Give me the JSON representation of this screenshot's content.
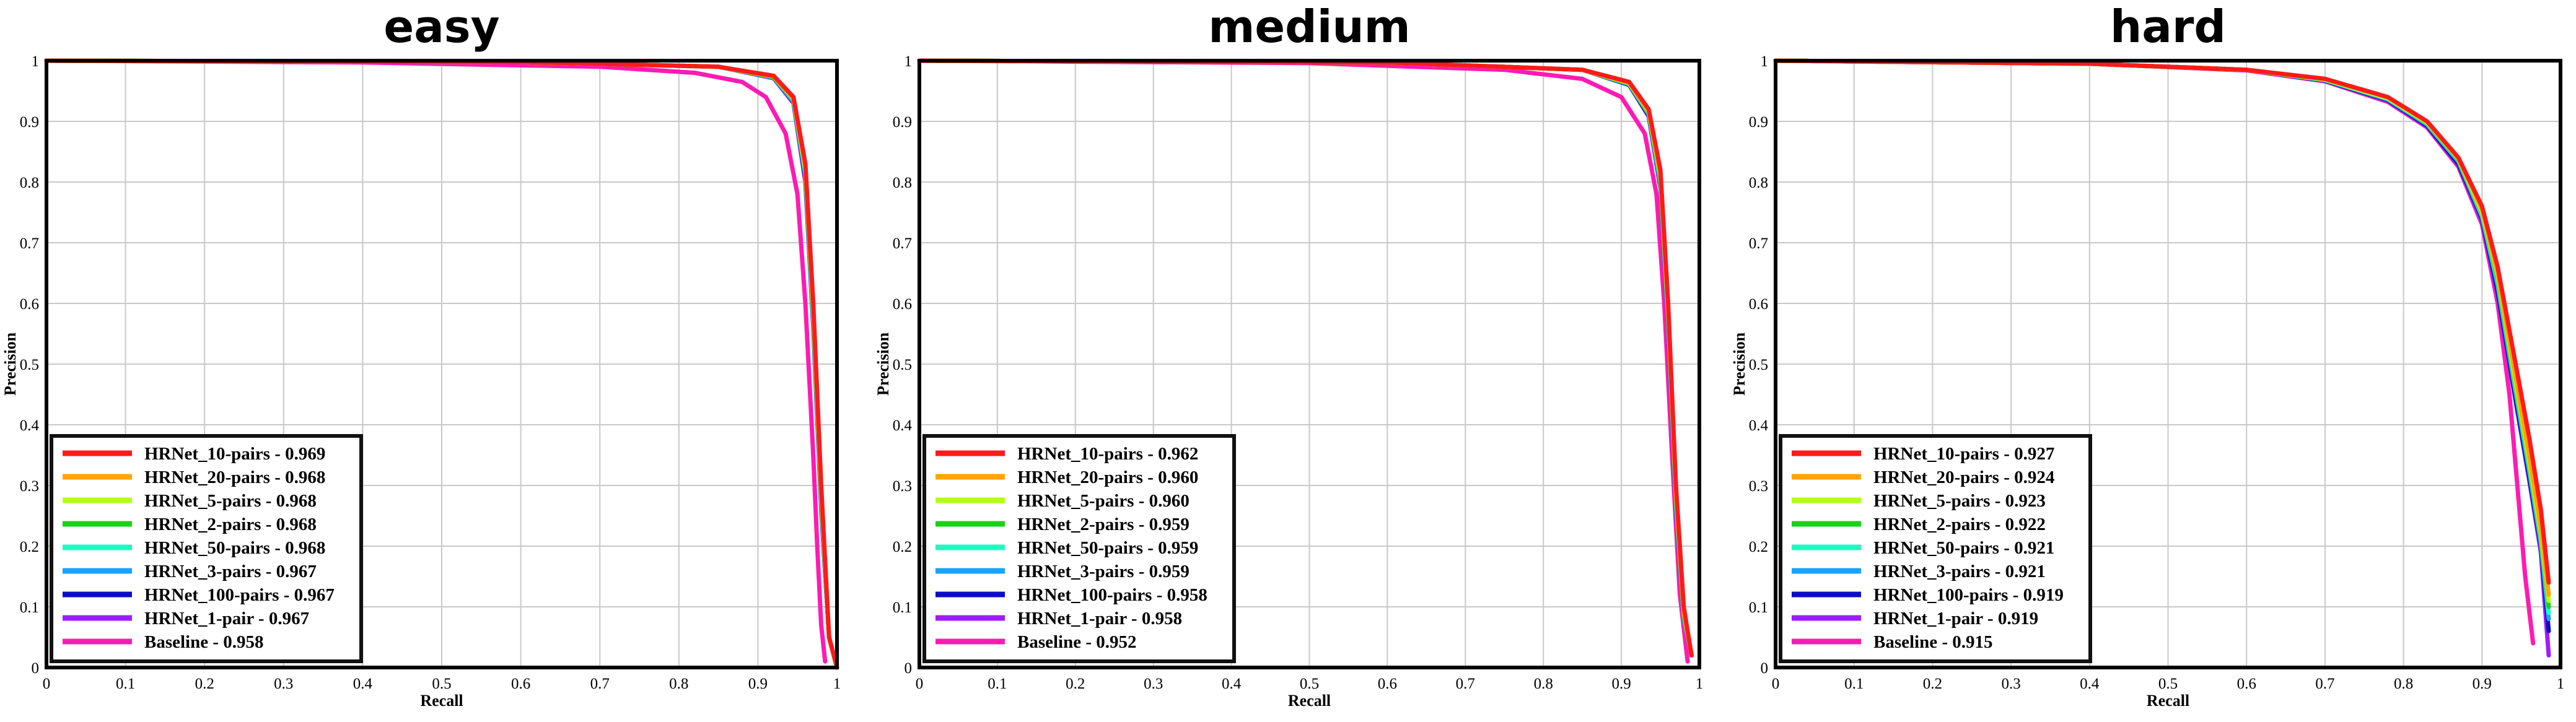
{
  "chart_data": [
    {
      "type": "line",
      "title": "easy",
      "xlabel": "Recall",
      "ylabel": "Precision",
      "xlim": [
        0,
        1
      ],
      "ylim": [
        0,
        1
      ],
      "xticks": [
        "0",
        "0.1",
        "0.2",
        "0.3",
        "0.4",
        "0.5",
        "0.6",
        "0.7",
        "0.8",
        "0.9",
        "1"
      ],
      "yticks": [
        "0",
        "0.1",
        "0.2",
        "0.3",
        "0.4",
        "0.5",
        "0.6",
        "0.7",
        "0.8",
        "0.9",
        "1"
      ],
      "grid": true,
      "legend_position": "bottom-left",
      "series": [
        {
          "name": "HRNet_10-pairs - 0.969",
          "color": "#ff1a1a",
          "x": [
            0,
            0.6,
            0.85,
            0.92,
            0.945,
            0.96,
            0.97,
            0.98,
            0.99,
            1.0
          ],
          "y": [
            1.0,
            0.998,
            0.99,
            0.975,
            0.94,
            0.83,
            0.6,
            0.3,
            0.05,
            0.0
          ]
        },
        {
          "name": "HRNet_20-pairs - 0.968",
          "color": "#ffa500",
          "x": [
            0,
            0.6,
            0.85,
            0.92,
            0.945,
            0.96,
            0.97,
            0.98,
            0.99,
            1.0
          ],
          "y": [
            1.0,
            0.998,
            0.99,
            0.974,
            0.938,
            0.825,
            0.59,
            0.29,
            0.05,
            0.0
          ]
        },
        {
          "name": "HRNet_5-pairs - 0.968",
          "color": "#b3ff1a",
          "x": [
            0,
            0.6,
            0.85,
            0.92,
            0.945,
            0.96,
            0.97,
            0.98,
            0.99,
            1.0
          ],
          "y": [
            1.0,
            0.998,
            0.99,
            0.974,
            0.937,
            0.82,
            0.585,
            0.285,
            0.05,
            0.0
          ]
        },
        {
          "name": "HRNet_2-pairs - 0.968",
          "color": "#1ad11a",
          "x": [
            0,
            0.6,
            0.85,
            0.92,
            0.945,
            0.96,
            0.97,
            0.98,
            0.99,
            1.0
          ],
          "y": [
            1.0,
            0.998,
            0.99,
            0.973,
            0.936,
            0.818,
            0.58,
            0.28,
            0.05,
            0.0
          ]
        },
        {
          "name": "HRNet_50-pairs - 0.968",
          "color": "#1affc0",
          "x": [
            0,
            0.6,
            0.85,
            0.92,
            0.945,
            0.96,
            0.97,
            0.98,
            0.99,
            1.0
          ],
          "y": [
            1.0,
            0.998,
            0.99,
            0.973,
            0.935,
            0.815,
            0.575,
            0.275,
            0.05,
            0.0
          ]
        },
        {
          "name": "HRNet_3-pairs - 0.967",
          "color": "#1aa3ff",
          "x": [
            0,
            0.6,
            0.85,
            0.92,
            0.945,
            0.96,
            0.97,
            0.98,
            0.99,
            1.0
          ],
          "y": [
            1.0,
            0.998,
            0.99,
            0.972,
            0.933,
            0.81,
            0.57,
            0.27,
            0.05,
            0.0
          ]
        },
        {
          "name": "HRNet_100-pairs - 0.967",
          "color": "#0d0dc4",
          "x": [
            0,
            0.6,
            0.85,
            0.92,
            0.945,
            0.96,
            0.97,
            0.98,
            0.99,
            1.0
          ],
          "y": [
            1.0,
            0.998,
            0.99,
            0.972,
            0.932,
            0.805,
            0.565,
            0.265,
            0.05,
            0.0
          ]
        },
        {
          "name": "HRNet_1-pair - 0.967",
          "color": "#a21aff",
          "x": [
            0,
            0.6,
            0.85,
            0.92,
            0.945,
            0.96,
            0.97,
            0.98,
            0.99,
            1.0
          ],
          "y": [
            1.0,
            0.998,
            0.99,
            0.971,
            0.93,
            0.8,
            0.56,
            0.26,
            0.05,
            0.0
          ]
        },
        {
          "name": "Baseline - 0.958",
          "color": "#ff1ab3",
          "x": [
            0,
            0.4,
            0.7,
            0.82,
            0.88,
            0.91,
            0.935,
            0.95,
            0.96,
            0.97,
            0.975,
            0.98,
            0.985
          ],
          "y": [
            1.0,
            0.997,
            0.99,
            0.98,
            0.965,
            0.94,
            0.88,
            0.78,
            0.6,
            0.35,
            0.2,
            0.07,
            0.01
          ]
        }
      ],
      "legend": {
        "items": [
          {
            "label": "HRNet_10-pairs - 0.969",
            "color": "#ff1a1a"
          },
          {
            "label": "HRNet_20-pairs - 0.968",
            "color": "#ffa500"
          },
          {
            "label": "HRNet_5-pairs - 0.968",
            "color": "#b3ff1a"
          },
          {
            "label": "HRNet_2-pairs - 0.968",
            "color": "#1ad11a"
          },
          {
            "label": "HRNet_50-pairs - 0.968",
            "color": "#1affc0"
          },
          {
            "label": "HRNet_3-pairs - 0.967",
            "color": "#1aa3ff"
          },
          {
            "label": "HRNet_100-pairs - 0.967",
            "color": "#0d0dc4"
          },
          {
            "label": "HRNet_1-pair - 0.967",
            "color": "#a21aff"
          },
          {
            "label": "Baseline - 0.958",
            "color": "#ff1ab3"
          }
        ]
      }
    },
    {
      "type": "line",
      "title": "medium",
      "xlabel": "Recall",
      "ylabel": "Precision",
      "xlim": [
        0,
        1
      ],
      "ylim": [
        0,
        1
      ],
      "xticks": [
        "0",
        "0.1",
        "0.2",
        "0.3",
        "0.4",
        "0.5",
        "0.6",
        "0.7",
        "0.8",
        "0.9",
        "1"
      ],
      "yticks": [
        "0",
        "0.1",
        "0.2",
        "0.3",
        "0.4",
        "0.5",
        "0.6",
        "0.7",
        "0.8",
        "0.9",
        "1"
      ],
      "grid": true,
      "legend_position": "bottom-left",
      "series": [
        {
          "name": "HRNet_10-pairs - 0.962",
          "color": "#ff1a1a",
          "x": [
            0,
            0.6,
            0.85,
            0.91,
            0.935,
            0.95,
            0.96,
            0.97,
            0.98,
            0.99
          ],
          "y": [
            1.0,
            0.997,
            0.985,
            0.965,
            0.92,
            0.82,
            0.6,
            0.3,
            0.1,
            0.02
          ]
        },
        {
          "name": "HRNet_20-pairs - 0.960",
          "color": "#ffa500",
          "x": [
            0,
            0.6,
            0.85,
            0.91,
            0.935,
            0.95,
            0.96,
            0.97,
            0.98,
            0.99
          ],
          "y": [
            1.0,
            0.997,
            0.985,
            0.964,
            0.918,
            0.815,
            0.59,
            0.29,
            0.09,
            0.02
          ]
        },
        {
          "name": "HRNet_5-pairs - 0.960",
          "color": "#b3ff1a",
          "x": [
            0,
            0.6,
            0.85,
            0.91,
            0.935,
            0.95,
            0.96,
            0.97,
            0.98,
            0.99
          ],
          "y": [
            1.0,
            0.997,
            0.985,
            0.963,
            0.916,
            0.81,
            0.585,
            0.285,
            0.09,
            0.02
          ]
        },
        {
          "name": "HRNet_2-pairs - 0.959",
          "color": "#1ad11a",
          "x": [
            0,
            0.6,
            0.85,
            0.91,
            0.935,
            0.95,
            0.96,
            0.97,
            0.98,
            0.99
          ],
          "y": [
            1.0,
            0.997,
            0.985,
            0.962,
            0.914,
            0.805,
            0.58,
            0.28,
            0.085,
            0.02
          ]
        },
        {
          "name": "HRNet_50-pairs - 0.959",
          "color": "#1affc0",
          "x": [
            0,
            0.6,
            0.85,
            0.91,
            0.935,
            0.95,
            0.96,
            0.97,
            0.98,
            0.99
          ],
          "y": [
            1.0,
            0.997,
            0.985,
            0.962,
            0.913,
            0.8,
            0.575,
            0.275,
            0.085,
            0.02
          ]
        },
        {
          "name": "HRNet_3-pairs - 0.959",
          "color": "#1aa3ff",
          "x": [
            0,
            0.6,
            0.85,
            0.91,
            0.935,
            0.95,
            0.96,
            0.97,
            0.98,
            0.99
          ],
          "y": [
            1.0,
            0.997,
            0.985,
            0.961,
            0.912,
            0.798,
            0.57,
            0.27,
            0.08,
            0.02
          ]
        },
        {
          "name": "HRNet_100-pairs - 0.958",
          "color": "#0d0dc4",
          "x": [
            0,
            0.6,
            0.85,
            0.91,
            0.935,
            0.95,
            0.96,
            0.97,
            0.98,
            0.99
          ],
          "y": [
            1.0,
            0.997,
            0.985,
            0.96,
            0.91,
            0.795,
            0.565,
            0.265,
            0.08,
            0.02
          ]
        },
        {
          "name": "HRNet_1-pair - 0.958",
          "color": "#a21aff",
          "x": [
            0,
            0.6,
            0.85,
            0.91,
            0.935,
            0.95,
            0.96,
            0.97,
            0.98,
            0.99
          ],
          "y": [
            1.0,
            0.997,
            0.985,
            0.96,
            0.908,
            0.79,
            0.56,
            0.26,
            0.08,
            0.02
          ]
        },
        {
          "name": "Baseline - 0.952",
          "color": "#ff1ab3",
          "x": [
            0,
            0.5,
            0.75,
            0.85,
            0.9,
            0.93,
            0.945,
            0.955,
            0.965,
            0.975,
            0.985
          ],
          "y": [
            1.0,
            0.996,
            0.985,
            0.97,
            0.94,
            0.88,
            0.78,
            0.6,
            0.35,
            0.12,
            0.01
          ]
        }
      ],
      "legend": {
        "items": [
          {
            "label": "HRNet_10-pairs - 0.962",
            "color": "#ff1a1a"
          },
          {
            "label": "HRNet_20-pairs - 0.960",
            "color": "#ffa500"
          },
          {
            "label": "HRNet_5-pairs - 0.960",
            "color": "#b3ff1a"
          },
          {
            "label": "HRNet_2-pairs - 0.959",
            "color": "#1ad11a"
          },
          {
            "label": "HRNet_50-pairs - 0.959",
            "color": "#1affc0"
          },
          {
            "label": "HRNet_3-pairs - 0.959",
            "color": "#1aa3ff"
          },
          {
            "label": "HRNet_100-pairs - 0.958",
            "color": "#0d0dc4"
          },
          {
            "label": "HRNet_1-pair - 0.958",
            "color": "#a21aff"
          },
          {
            "label": "Baseline - 0.952",
            "color": "#ff1ab3"
          }
        ]
      }
    },
    {
      "type": "line",
      "title": "hard",
      "xlabel": "Recall",
      "ylabel": "Precision",
      "xlim": [
        0,
        1
      ],
      "ylim": [
        0,
        1
      ],
      "xticks": [
        "0",
        "0.1",
        "0.2",
        "0.3",
        "0.4",
        "0.5",
        "0.6",
        "0.7",
        "0.8",
        "0.9",
        "1"
      ],
      "yticks": [
        "0",
        "0.1",
        "0.2",
        "0.3",
        "0.4",
        "0.5",
        "0.6",
        "0.7",
        "0.8",
        "0.9",
        "1"
      ],
      "grid": true,
      "legend_position": "bottom-left",
      "series": [
        {
          "name": "HRNet_10-pairs - 0.927",
          "color": "#ff1a1a",
          "x": [
            0,
            0.4,
            0.6,
            0.7,
            0.78,
            0.83,
            0.87,
            0.9,
            0.92,
            0.94,
            0.96,
            0.975,
            0.985
          ],
          "y": [
            1.0,
            0.995,
            0.985,
            0.97,
            0.94,
            0.9,
            0.84,
            0.76,
            0.66,
            0.52,
            0.38,
            0.26,
            0.14
          ]
        },
        {
          "name": "HRNet_20-pairs - 0.924",
          "color": "#ffa500",
          "x": [
            0,
            0.4,
            0.6,
            0.7,
            0.78,
            0.83,
            0.87,
            0.9,
            0.92,
            0.94,
            0.96,
            0.975,
            0.985
          ],
          "y": [
            1.0,
            0.995,
            0.985,
            0.97,
            0.94,
            0.9,
            0.84,
            0.755,
            0.65,
            0.5,
            0.35,
            0.23,
            0.12
          ]
        },
        {
          "name": "HRNet_5-pairs - 0.923",
          "color": "#b3ff1a",
          "x": [
            0,
            0.4,
            0.6,
            0.7,
            0.78,
            0.83,
            0.87,
            0.9,
            0.92,
            0.94,
            0.96,
            0.975,
            0.985
          ],
          "y": [
            1.0,
            0.995,
            0.985,
            0.969,
            0.938,
            0.898,
            0.838,
            0.75,
            0.645,
            0.49,
            0.34,
            0.22,
            0.11
          ]
        },
        {
          "name": "HRNet_2-pairs - 0.922",
          "color": "#1ad11a",
          "x": [
            0,
            0.4,
            0.6,
            0.7,
            0.78,
            0.83,
            0.87,
            0.9,
            0.92,
            0.94,
            0.96,
            0.975,
            0.985
          ],
          "y": [
            1.0,
            0.995,
            0.985,
            0.969,
            0.938,
            0.897,
            0.836,
            0.748,
            0.64,
            0.485,
            0.335,
            0.215,
            0.1
          ]
        },
        {
          "name": "HRNet_50-pairs - 0.921",
          "color": "#1affc0",
          "x": [
            0,
            0.4,
            0.6,
            0.7,
            0.78,
            0.83,
            0.87,
            0.9,
            0.92,
            0.94,
            0.96,
            0.975,
            0.985
          ],
          "y": [
            1.0,
            0.995,
            0.985,
            0.968,
            0.937,
            0.896,
            0.835,
            0.745,
            0.635,
            0.48,
            0.33,
            0.21,
            0.09
          ]
        },
        {
          "name": "HRNet_3-pairs - 0.921",
          "color": "#1aa3ff",
          "x": [
            0,
            0.4,
            0.6,
            0.7,
            0.78,
            0.83,
            0.87,
            0.9,
            0.92,
            0.94,
            0.96,
            0.975,
            0.985
          ],
          "y": [
            1.0,
            0.995,
            0.985,
            0.968,
            0.936,
            0.895,
            0.834,
            0.743,
            0.63,
            0.475,
            0.325,
            0.205,
            0.08
          ]
        },
        {
          "name": "HRNet_100-pairs - 0.919",
          "color": "#0d0dc4",
          "x": [
            0,
            0.4,
            0.6,
            0.7,
            0.78,
            0.83,
            0.87,
            0.9,
            0.92,
            0.94,
            0.96,
            0.975,
            0.985
          ],
          "y": [
            1.0,
            0.995,
            0.985,
            0.967,
            0.935,
            0.893,
            0.83,
            0.74,
            0.62,
            0.465,
            0.315,
            0.2,
            0.06
          ]
        },
        {
          "name": "HRNet_1-pair - 0.919",
          "color": "#a21aff",
          "x": [
            0,
            0.4,
            0.6,
            0.7,
            0.78,
            0.83,
            0.87,
            0.9,
            0.92,
            0.94,
            0.96,
            0.975,
            0.985
          ],
          "y": [
            1.0,
            0.995,
            0.985,
            0.967,
            0.934,
            0.892,
            0.828,
            0.735,
            0.615,
            0.46,
            0.31,
            0.19,
            0.02
          ]
        },
        {
          "name": "Baseline - 0.915",
          "color": "#ff1ab3",
          "x": [
            0,
            0.4,
            0.6,
            0.7,
            0.78,
            0.83,
            0.87,
            0.9,
            0.92,
            0.935,
            0.945,
            0.955,
            0.965
          ],
          "y": [
            1.0,
            0.995,
            0.984,
            0.966,
            0.932,
            0.89,
            0.825,
            0.73,
            0.6,
            0.45,
            0.3,
            0.15,
            0.04
          ]
        }
      ],
      "legend": {
        "items": [
          {
            "label": "HRNet_10-pairs - 0.927",
            "color": "#ff1a1a"
          },
          {
            "label": "HRNet_20-pairs - 0.924",
            "color": "#ffa500"
          },
          {
            "label": "HRNet_5-pairs - 0.923",
            "color": "#b3ff1a"
          },
          {
            "label": "HRNet_2-pairs - 0.922",
            "color": "#1ad11a"
          },
          {
            "label": "HRNet_50-pairs - 0.921",
            "color": "#1affc0"
          },
          {
            "label": "HRNet_3-pairs - 0.921",
            "color": "#1aa3ff"
          },
          {
            "label": "HRNet_100-pairs - 0.919",
            "color": "#0d0dc4"
          },
          {
            "label": "HRNet_1-pair - 0.919",
            "color": "#a21aff"
          },
          {
            "label": "Baseline - 0.915",
            "color": "#ff1ab3"
          }
        ]
      }
    }
  ]
}
